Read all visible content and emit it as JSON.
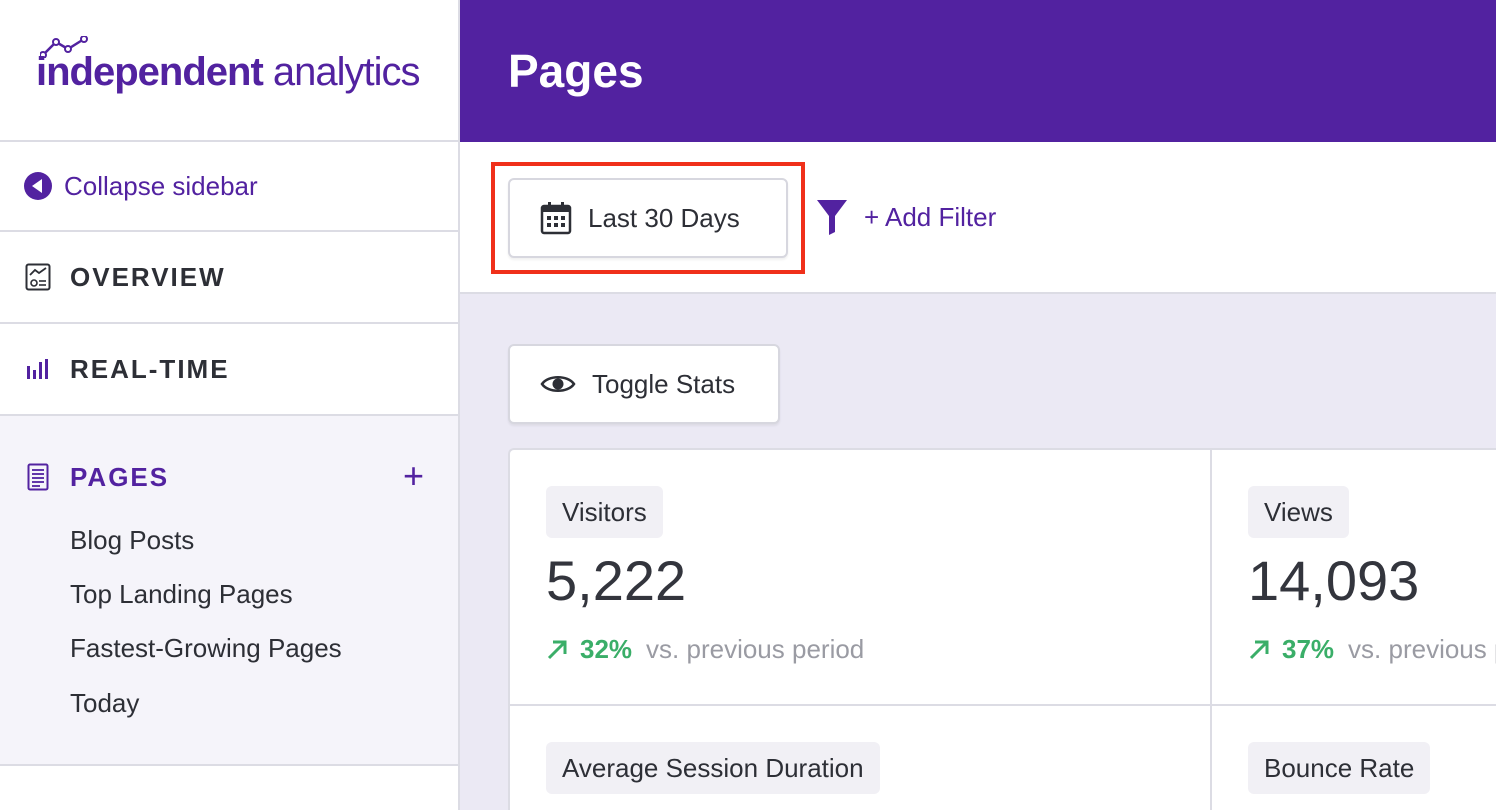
{
  "brand": {
    "logo_bold": "independent",
    "logo_regular": " analytics"
  },
  "sidebar": {
    "collapse_label": "Collapse sidebar",
    "nav": [
      {
        "label": "OVERVIEW",
        "icon": "overview-icon"
      },
      {
        "label": "REAL-TIME",
        "icon": "bar-chart-icon"
      }
    ],
    "pages": {
      "label": "PAGES",
      "icon": "document-icon",
      "add": "+",
      "items": [
        "Blog Posts",
        "Top Landing Pages",
        "Fastest-Growing Pages",
        "Today"
      ]
    }
  },
  "header": {
    "title": "Pages"
  },
  "filters": {
    "date_range": "Last 30 Days",
    "add_filter": "+ Add Filter"
  },
  "toolbar": {
    "toggle_stats": "Toggle Stats"
  },
  "stats": [
    {
      "label": "Visitors",
      "value": "5,222",
      "change": "32%",
      "vs": "vs. previous period"
    },
    {
      "label": "Views",
      "value": "14,093",
      "change": "37%",
      "vs": "vs. previous period"
    },
    {
      "label": "Average Session Duration"
    },
    {
      "label": "Bounce Rate"
    }
  ],
  "colors": {
    "brand": "#5222a0",
    "positive": "#3aae68",
    "highlight": "#f0301a"
  }
}
